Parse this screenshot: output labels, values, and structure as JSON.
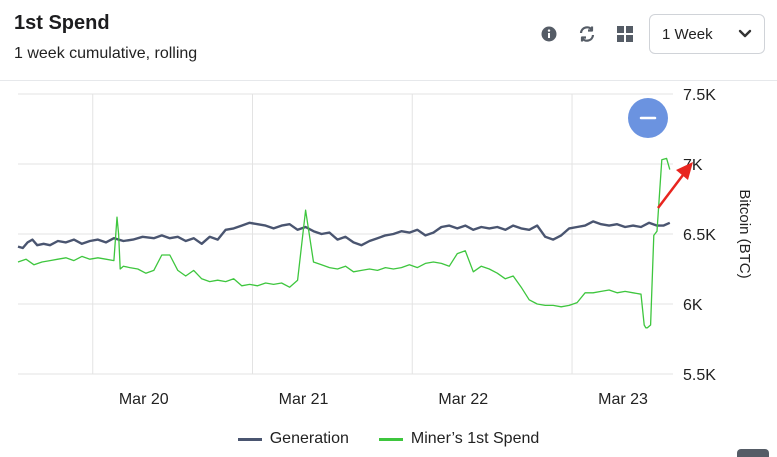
{
  "header": {
    "title": "1st Spend",
    "subtitle": "1 week cumulative, rolling",
    "period_select": {
      "value": "1 Week"
    }
  },
  "toolbar": {
    "icons": [
      "info-icon",
      "refresh-icon",
      "grid-icon"
    ]
  },
  "colors": {
    "generation": "#4a5570",
    "spend": "#3ec63e",
    "grid": "#e3e3e3",
    "zoom_button": "#6b93e0"
  },
  "chart_data": {
    "type": "line",
    "xlabel": "",
    "ylabel": "Bitcoin (BTC)",
    "x_tick_labels": [
      "Mar 20",
      "Mar 21",
      "Mar 22",
      "Mar 23"
    ],
    "x_ticks": [
      1,
      2,
      3,
      4
    ],
    "xlim": [
      0.0,
      4.1
    ],
    "ylim": [
      5500,
      7500
    ],
    "y_tick_values": [
      5500,
      6000,
      6500,
      7000,
      7500
    ],
    "y_tick_labels": [
      "5.5K",
      "6K",
      "6.5K",
      "7K",
      "7.5K"
    ],
    "grid": true,
    "legend": "bottom-center",
    "series": [
      {
        "name": "Generation",
        "color": "#4a5570",
        "x": [
          0.0,
          0.03,
          0.06,
          0.09,
          0.12,
          0.16,
          0.2,
          0.25,
          0.3,
          0.35,
          0.4,
          0.45,
          0.5,
          0.55,
          0.6,
          0.66,
          0.72,
          0.78,
          0.85,
          0.9,
          0.95,
          1.0,
          1.05,
          1.1,
          1.15,
          1.2,
          1.25,
          1.3,
          1.35,
          1.4,
          1.45,
          1.5,
          1.55,
          1.6,
          1.65,
          1.7,
          1.75,
          1.8,
          1.85,
          1.9,
          1.95,
          2.0,
          2.05,
          2.1,
          2.15,
          2.2,
          2.25,
          2.3,
          2.35,
          2.4,
          2.45,
          2.5,
          2.55,
          2.6,
          2.65,
          2.7,
          2.75,
          2.8,
          2.85,
          2.9,
          2.95,
          3.0,
          3.05,
          3.1,
          3.15,
          3.2,
          3.25,
          3.3,
          3.35,
          3.4,
          3.45,
          3.5,
          3.55,
          3.6,
          3.65,
          3.7,
          3.75,
          3.8,
          3.85,
          3.9,
          3.95,
          4.0,
          4.04,
          4.08
        ],
        "values": [
          6410,
          6400,
          6440,
          6460,
          6420,
          6430,
          6420,
          6450,
          6440,
          6460,
          6430,
          6450,
          6460,
          6440,
          6470,
          6450,
          6460,
          6480,
          6470,
          6490,
          6470,
          6480,
          6450,
          6470,
          6430,
          6480,
          6460,
          6530,
          6540,
          6560,
          6580,
          6570,
          6560,
          6540,
          6560,
          6570,
          6530,
          6550,
          6520,
          6500,
          6510,
          6460,
          6480,
          6440,
          6420,
          6450,
          6470,
          6490,
          6500,
          6520,
          6510,
          6530,
          6490,
          6510,
          6550,
          6560,
          6540,
          6560,
          6530,
          6550,
          6540,
          6550,
          6530,
          6560,
          6540,
          6530,
          6560,
          6480,
          6460,
          6490,
          6540,
          6550,
          6560,
          6590,
          6570,
          6560,
          6570,
          6550,
          6560,
          6550,
          6580,
          6560,
          6560,
          6580
        ]
      },
      {
        "name": "Miner’s 1st Spend",
        "color": "#3ec63e",
        "x": [
          0.0,
          0.05,
          0.1,
          0.15,
          0.2,
          0.25,
          0.3,
          0.35,
          0.4,
          0.45,
          0.5,
          0.55,
          0.6,
          0.62,
          0.63,
          0.64,
          0.66,
          0.7,
          0.75,
          0.8,
          0.85,
          0.9,
          0.95,
          1.0,
          1.05,
          1.1,
          1.15,
          1.2,
          1.25,
          1.3,
          1.35,
          1.4,
          1.45,
          1.5,
          1.55,
          1.6,
          1.65,
          1.7,
          1.75,
          1.8,
          1.85,
          1.9,
          1.95,
          2.0,
          2.05,
          2.1,
          2.15,
          2.2,
          2.25,
          2.3,
          2.35,
          2.4,
          2.45,
          2.5,
          2.55,
          2.6,
          2.65,
          2.7,
          2.75,
          2.8,
          2.85,
          2.9,
          2.95,
          3.0,
          3.05,
          3.1,
          3.15,
          3.2,
          3.25,
          3.3,
          3.35,
          3.4,
          3.45,
          3.5,
          3.55,
          3.6,
          3.65,
          3.7,
          3.75,
          3.8,
          3.85,
          3.9,
          3.92,
          3.93,
          3.94,
          3.96,
          3.98,
          4.0,
          4.03,
          4.06,
          4.08
        ],
        "values": [
          6300,
          6320,
          6280,
          6300,
          6310,
          6320,
          6330,
          6310,
          6340,
          6320,
          6330,
          6320,
          6310,
          6620,
          6500,
          6250,
          6270,
          6260,
          6250,
          6220,
          6240,
          6350,
          6350,
          6240,
          6200,
          6240,
          6180,
          6160,
          6170,
          6160,
          6180,
          6130,
          6140,
          6130,
          6150,
          6140,
          6150,
          6120,
          6170,
          6670,
          6300,
          6280,
          6260,
          6250,
          6270,
          6230,
          6240,
          6250,
          6240,
          6260,
          6250,
          6260,
          6280,
          6260,
          6290,
          6300,
          6290,
          6270,
          6360,
          6380,
          6230,
          6270,
          6250,
          6220,
          6180,
          6200,
          6120,
          6030,
          6000,
          5990,
          5990,
          5980,
          5990,
          6010,
          6080,
          6080,
          6090,
          6100,
          6080,
          6090,
          6080,
          6070,
          5850,
          5830,
          5830,
          5850,
          6490,
          6520,
          7030,
          7040,
          6960
        ]
      }
    ]
  },
  "legend": {
    "generation_label": "Generation",
    "spend_label": "Miner’s 1st Spend"
  }
}
